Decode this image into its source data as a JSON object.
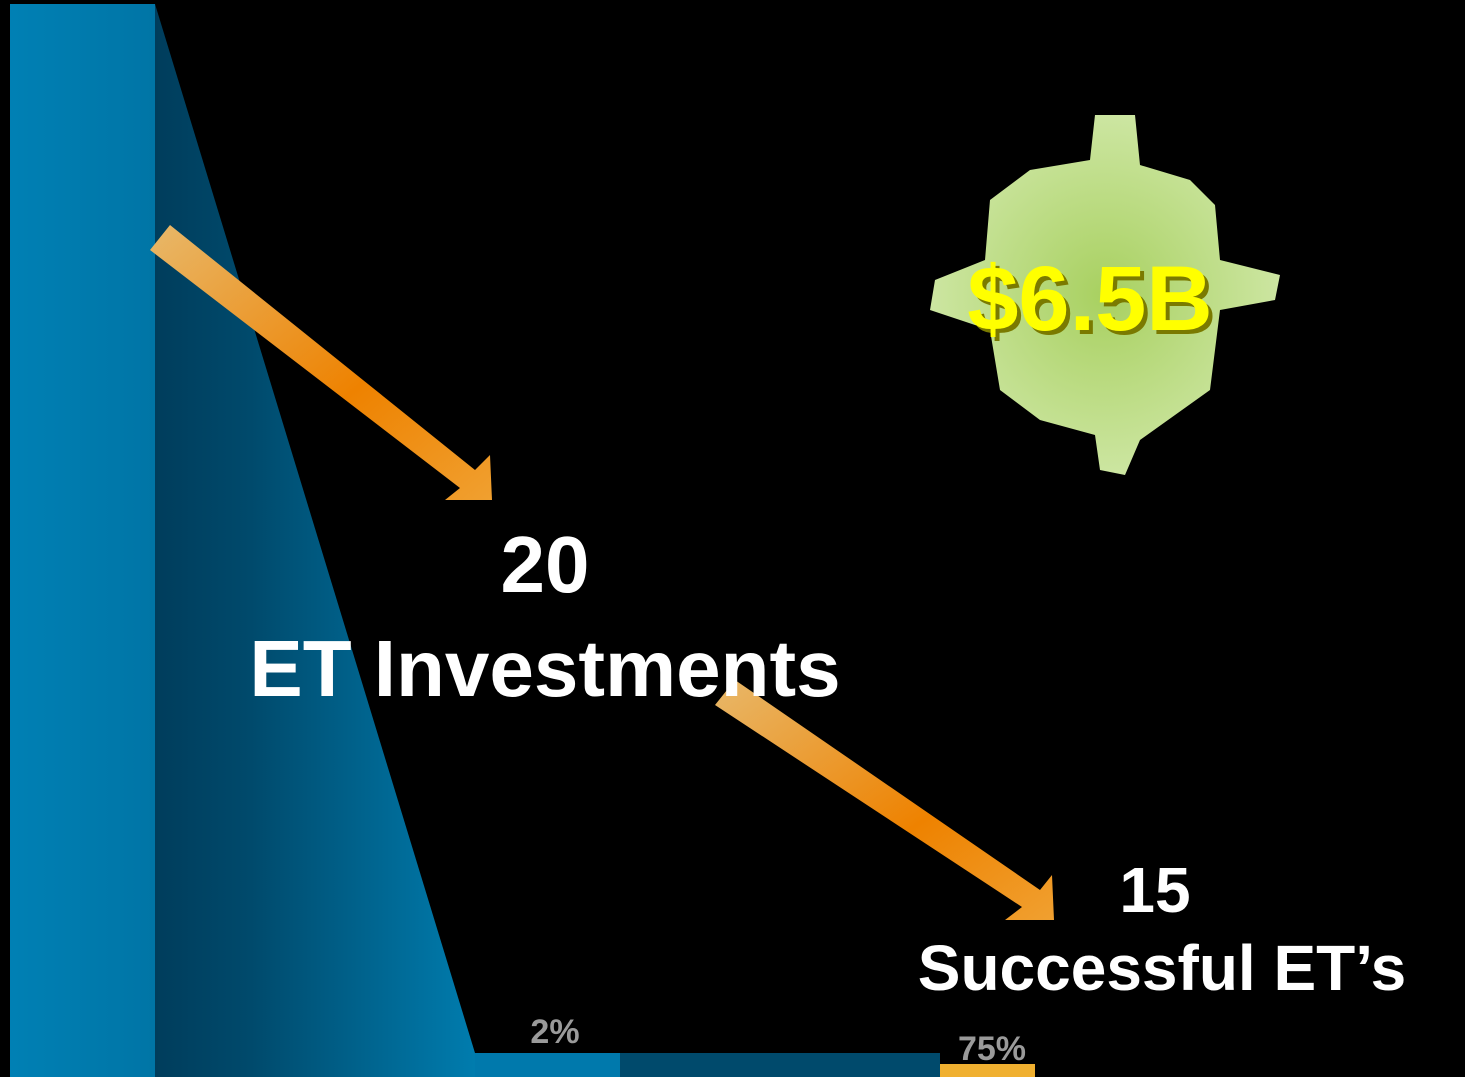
{
  "highlight": {
    "amount": "$6.5B"
  },
  "stages": [
    {
      "count": "20",
      "label": "ET Investments",
      "rate": "2%"
    },
    {
      "count": "15",
      "label": "Successful ET’s",
      "rate": "75%"
    }
  ]
}
